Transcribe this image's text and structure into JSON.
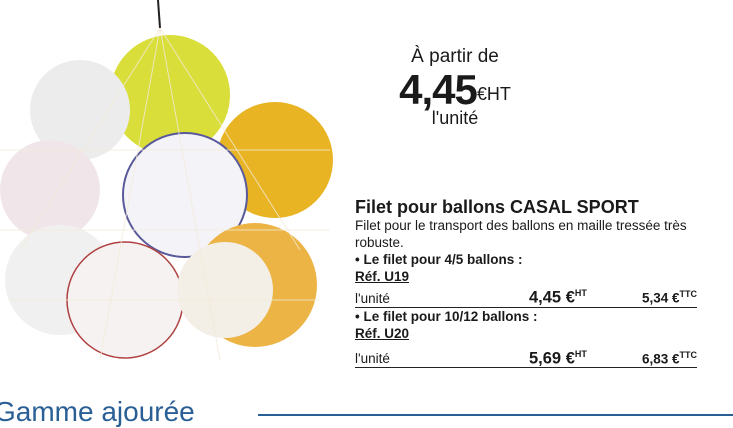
{
  "promo": {
    "from": "À partir de",
    "price": "4,45",
    "currency": "€HT",
    "per": "l'unité"
  },
  "product": {
    "title": "Filet pour ballons CASAL SPORT",
    "description": "Filet pour le transport des ballons en maille tressée très robuste.",
    "variants": [
      {
        "label": "• Le filet pour 4/5 ballons :",
        "ref": "Réf. U19",
        "unit": "l'unité",
        "price_ht": "4,45 €",
        "ht_label": "HT",
        "price_ttc": "5,34 €",
        "ttc_label": "TTC"
      },
      {
        "label": "• Le filet pour 10/12 ballons :",
        "ref": "Réf. U20",
        "unit": "l'unité",
        "price_ht": "5,69 €",
        "ht_label": "HT",
        "price_ttc": "6,83 €",
        "ttc_label": "TTC"
      }
    ]
  },
  "section": {
    "title": "Gamme ajourée",
    "color": "#2a5f95"
  },
  "image": {
    "subject": "ball-net-photo"
  }
}
